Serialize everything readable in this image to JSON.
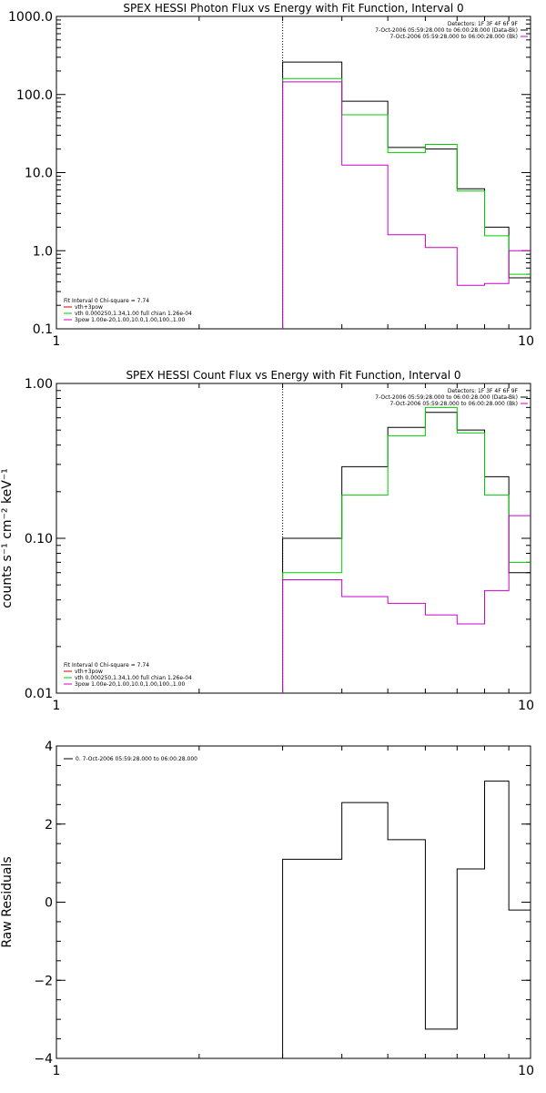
{
  "chart_data": [
    {
      "type": "line",
      "title": "SPEX HESSI Photon Flux vs Energy with Fit Function, Interval 0",
      "ylabel": "",
      "xlabel": "",
      "xscale": "log",
      "yscale": "log",
      "xlim": [
        1,
        10
      ],
      "ylim": [
        0.1,
        1000
      ],
      "xticks": [
        1,
        10
      ],
      "xtick_labels": [
        "1",
        "10"
      ],
      "yticks": [
        0.1,
        1,
        10,
        100,
        1000
      ],
      "ytick_labels": [
        "0.1",
        "1.0",
        "10.0",
        "100.0",
        "1000.0"
      ],
      "vline": 3,
      "bin_edges": [
        3,
        4,
        5,
        6,
        7,
        8,
        9,
        10
      ],
      "series": [
        {
          "color": "#000000",
          "values": [
            260,
            82,
            21,
            20,
            6.2,
            2.0,
            0.45
          ]
        },
        {
          "color": "#00cc00",
          "values": [
            160,
            55,
            18,
            23,
            5.8,
            1.55,
            0.5
          ]
        },
        {
          "color": "#cc00cc",
          "values": [
            145,
            12.5,
            1.6,
            1.1,
            0.36,
            0.38,
            1.0
          ]
        }
      ],
      "legend_tr": [
        "Detectors: 1F 3F 4F 6F 9F",
        "7-Oct-2006 05:59:28.000 to 06:00:28.000 (Data-Bk)",
        "7-Oct-2006 05:59:28.000 to 06:00:28.000 (Bk)"
      ],
      "legend_tr_colors": [
        "",
        "#000000",
        "#cc00cc"
      ],
      "legend_bl": [
        "Fit Interval 0   Chi-square = 7.74",
        "vth+3pow",
        "vth 0.000250,1.34,1.00  full chian 1.26e-04",
        "3pow 1.00e-20,1.00,10.0,1.00,100.,1.00"
      ],
      "legend_bl_colors": [
        "",
        "#cc0000",
        "#00cc00",
        "#cc00cc"
      ]
    },
    {
      "type": "line",
      "title": "SPEX HESSI Count Flux vs Energy with Fit Function, Interval 0",
      "ylabel": "counts s⁻¹ cm⁻² keV⁻¹",
      "xlabel": "",
      "xscale": "log",
      "yscale": "log",
      "xlim": [
        1,
        10
      ],
      "ylim": [
        0.01,
        1
      ],
      "xticks": [
        1,
        10
      ],
      "xtick_labels": [
        "1",
        "10"
      ],
      "yticks": [
        0.01,
        0.1,
        1
      ],
      "ytick_labels": [
        "0.01",
        "0.10",
        "1.00"
      ],
      "vline": 3,
      "bin_edges": [
        3,
        4,
        5,
        6,
        7,
        8,
        9,
        10
      ],
      "series": [
        {
          "color": "#000000",
          "values": [
            0.1,
            0.29,
            0.52,
            0.65,
            0.5,
            0.25,
            0.06
          ]
        },
        {
          "color": "#00cc00",
          "values": [
            0.06,
            0.19,
            0.46,
            0.7,
            0.48,
            0.19,
            0.07
          ]
        },
        {
          "color": "#cc00cc",
          "values": [
            0.054,
            0.042,
            0.038,
            0.032,
            0.028,
            0.046,
            0.14
          ]
        }
      ],
      "legend_tr": [
        "Detectors: 1F 3F 4F 6F 9F",
        "7-Oct-2006 05:59:28.000 to 06:00:28.000 (Data-Bk)",
        "7-Oct-2006 05:59:28.000 to 06:00:28.000 (Bk)"
      ],
      "legend_tr_colors": [
        "",
        "#000000",
        "#cc00cc"
      ],
      "legend_bl": [
        "Fit Interval 0   Chi-square = 7.74",
        "vth+3pow",
        "vth 0.000250,1.34,1.00  full chian 1.26e-04",
        "3pow 1.00e-20,1.00,10.0,1.00,100.,1.00"
      ],
      "legend_bl_colors": [
        "",
        "#cc0000",
        "#00cc00",
        "#cc00cc"
      ]
    },
    {
      "type": "line",
      "title": "",
      "ylabel": "Raw Residuals",
      "xlabel": "",
      "xscale": "log",
      "yscale": "linear",
      "xlim": [
        1,
        10
      ],
      "ylim": [
        -4,
        4
      ],
      "xticks": [
        1,
        10
      ],
      "xtick_labels": [
        "1",
        "10"
      ],
      "yticks": [
        -4,
        -2,
        0,
        2,
        4
      ],
      "ytick_labels": [
        "−4",
        "−2",
        "0",
        "2",
        "4"
      ],
      "bin_edges": [
        3,
        4,
        5,
        6,
        7,
        8,
        9,
        10
      ],
      "series": [
        {
          "color": "#000000",
          "values": [
            1.1,
            2.55,
            1.6,
            -3.25,
            0.85,
            3.1,
            -0.2
          ]
        }
      ],
      "legend_tl": [
        "0.  7-Oct-2006 05:59:28.000 to 06:00:28.000"
      ]
    }
  ]
}
